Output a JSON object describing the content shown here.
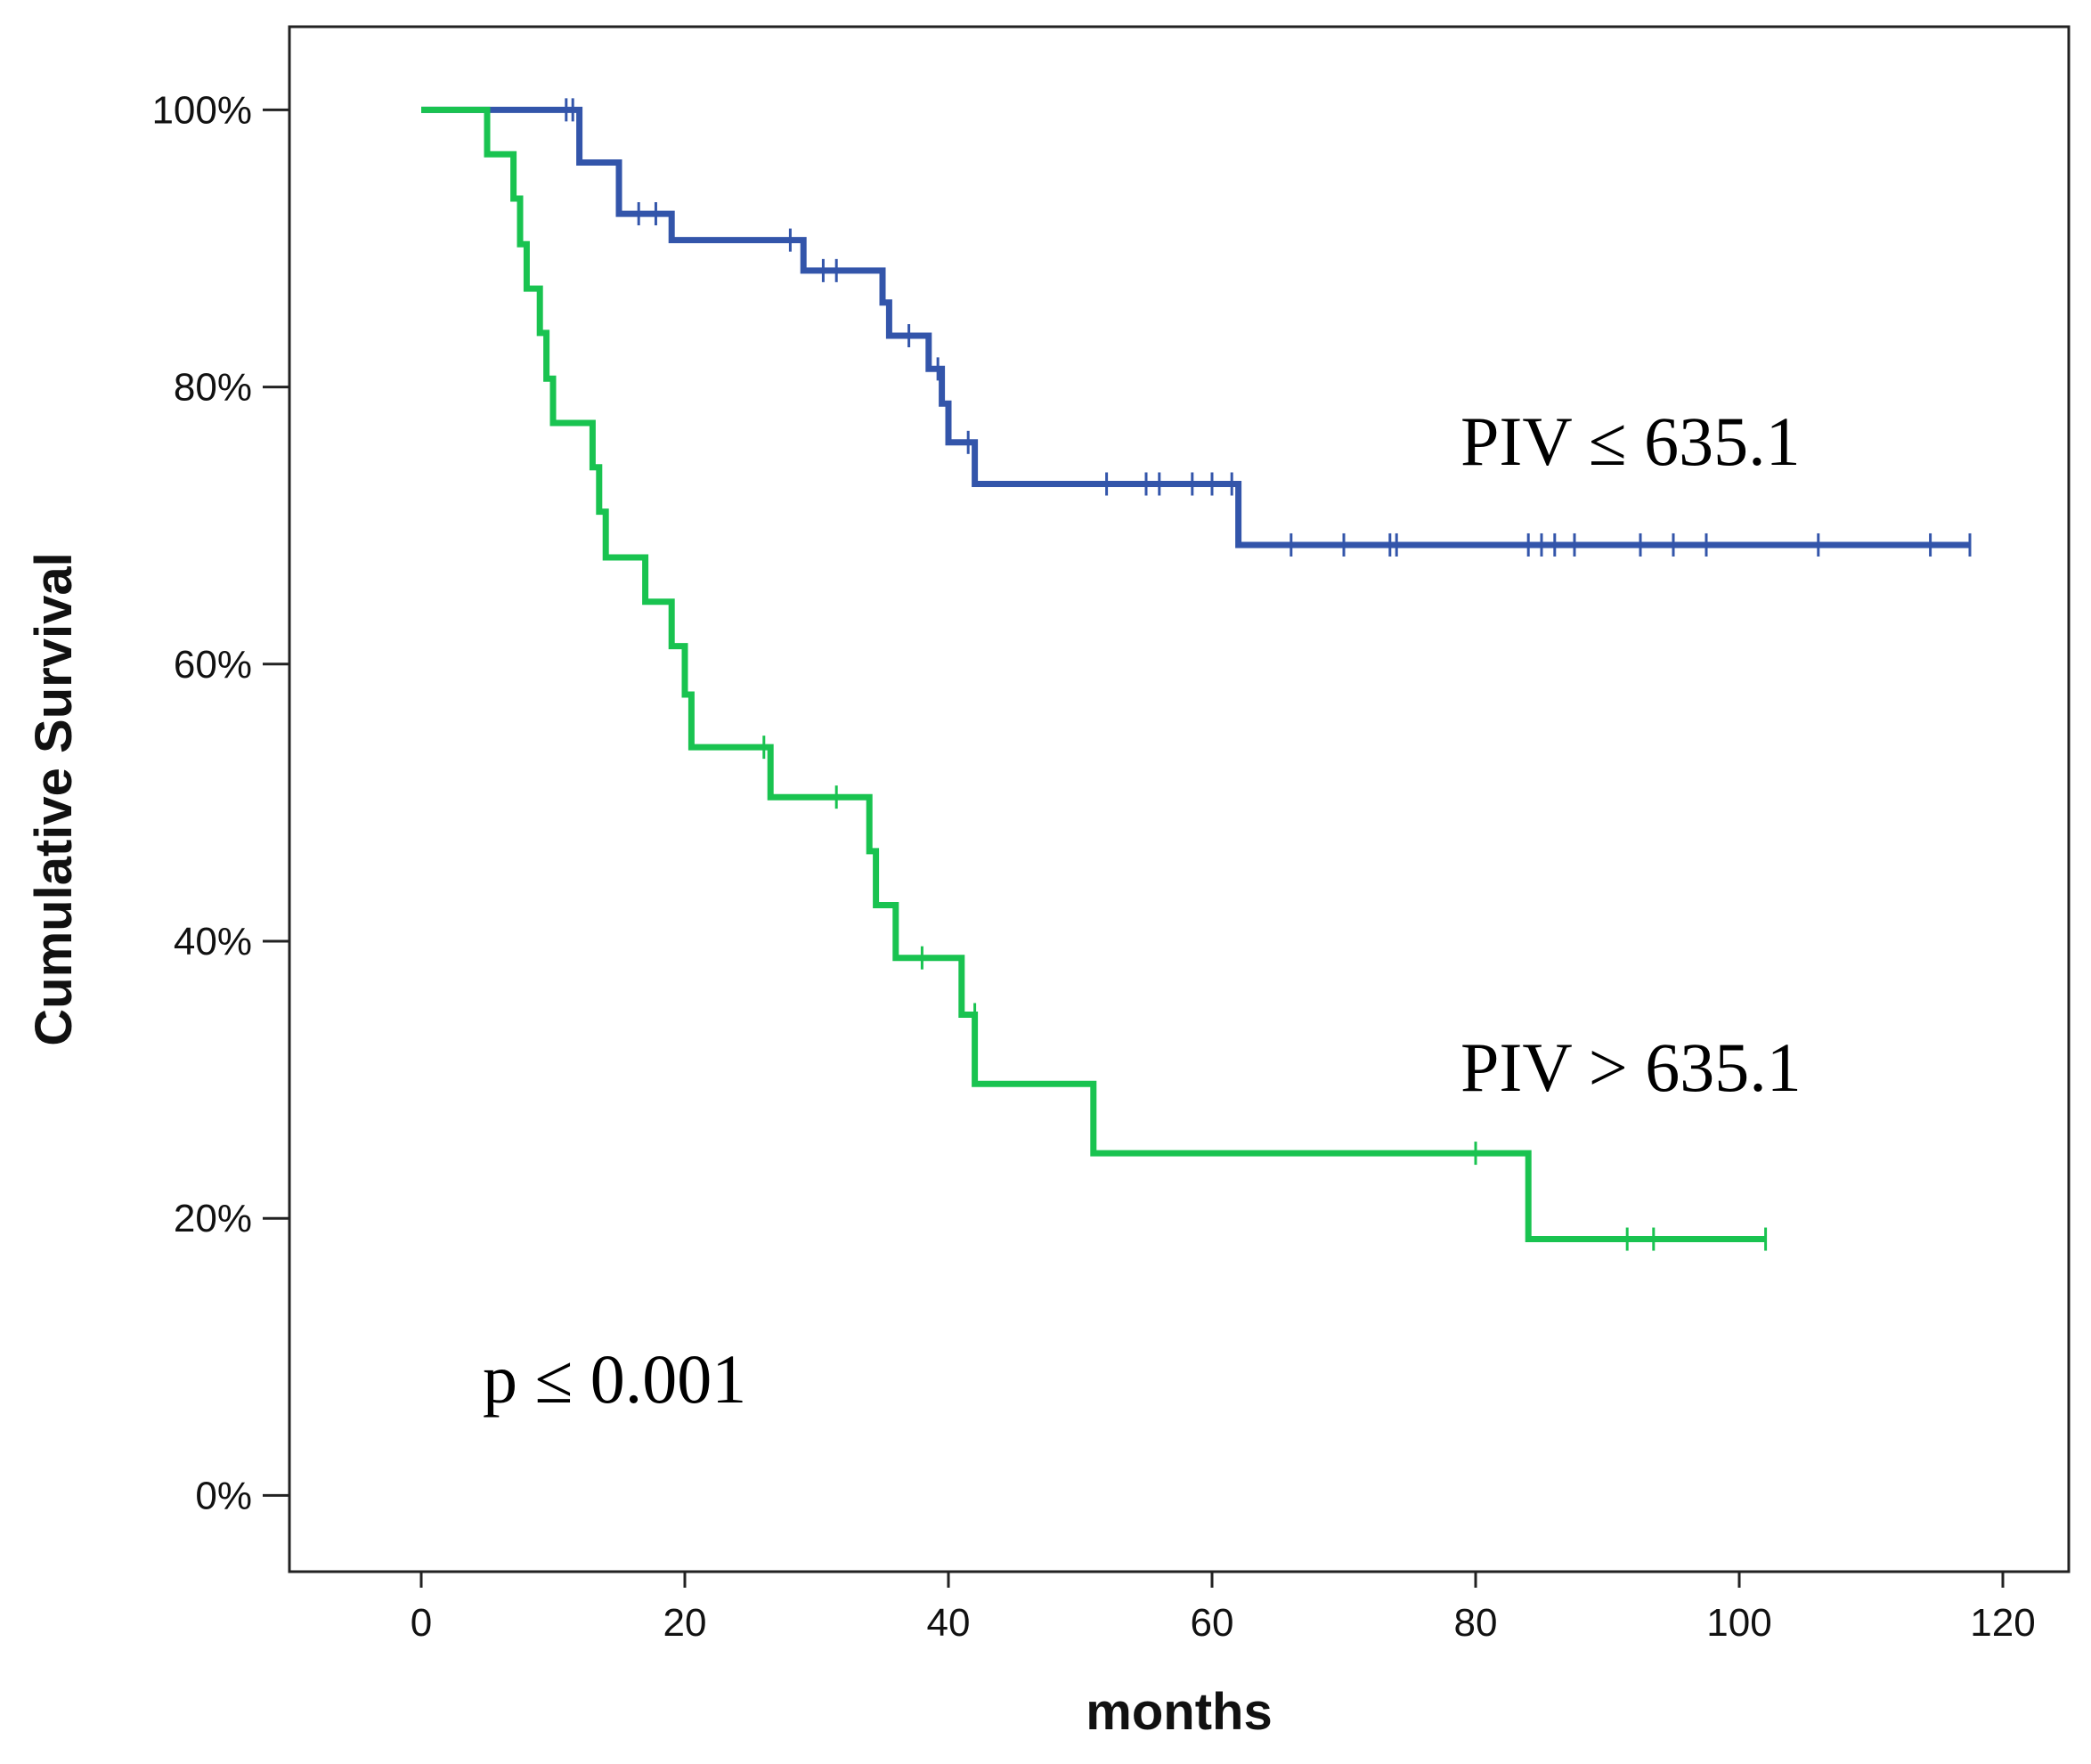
{
  "chart_data": {
    "type": "line",
    "subtype": "kaplan-meier step",
    "xlabel": "months",
    "ylabel": "Cumulative Survival",
    "xlim": [
      -10,
      125
    ],
    "ylim": [
      -5.5,
      106
    ],
    "x_ticks": [
      0,
      20,
      40,
      60,
      80,
      100,
      120
    ],
    "y_ticks": [
      0,
      20,
      40,
      60,
      80,
      100
    ],
    "x_tick_labels": [
      "0",
      "20",
      "40",
      "60",
      "80",
      "100",
      "120"
    ],
    "y_tick_labels": [
      "0%",
      "20%",
      "40%",
      "60%",
      "80%",
      "100%"
    ],
    "grid": false,
    "series": [
      {
        "name": "PIV ≤ 635.1",
        "color": "#3355aa",
        "steps": [
          [
            0,
            100
          ],
          [
            12,
            96.2
          ],
          [
            15,
            92.5
          ],
          [
            19,
            90.6
          ],
          [
            29,
            88.4
          ],
          [
            35,
            86.1
          ],
          [
            35.5,
            83.7
          ],
          [
            38.5,
            81.3
          ],
          [
            39.5,
            78.8
          ],
          [
            40,
            76.0
          ],
          [
            42,
            73.0
          ],
          [
            62,
            68.6
          ],
          [
            117.5,
            68.6
          ]
        ],
        "censored": [
          [
            11,
            100
          ],
          [
            11.5,
            100
          ],
          [
            16.5,
            92.5
          ],
          [
            17.8,
            92.5
          ],
          [
            28,
            90.6
          ],
          [
            30.5,
            88.4
          ],
          [
            31.5,
            88.4
          ],
          [
            37,
            83.7
          ],
          [
            39.2,
            81.3
          ],
          [
            41.5,
            76.0
          ],
          [
            52,
            73.0
          ],
          [
            55,
            73.0
          ],
          [
            56,
            73.0
          ],
          [
            58.5,
            73.0
          ],
          [
            60,
            73.0
          ],
          [
            61.5,
            73.0
          ],
          [
            66,
            68.6
          ],
          [
            70,
            68.6
          ],
          [
            73.5,
            68.6
          ],
          [
            74,
            68.6
          ],
          [
            84,
            68.6
          ],
          [
            85,
            68.6
          ],
          [
            86,
            68.6
          ],
          [
            87.5,
            68.6
          ],
          [
            92.5,
            68.6
          ],
          [
            95,
            68.6
          ],
          [
            97.5,
            68.6
          ],
          [
            106,
            68.6
          ],
          [
            114.5,
            68.6
          ],
          [
            117.5,
            68.6
          ]
        ]
      },
      {
        "name": "PIV > 635.1",
        "color": "#19c350",
        "steps": [
          [
            0,
            100
          ],
          [
            5,
            96.8
          ],
          [
            7,
            93.6
          ],
          [
            7.5,
            90.3
          ],
          [
            8,
            87.1
          ],
          [
            9,
            83.9
          ],
          [
            9.5,
            80.6
          ],
          [
            10,
            77.4
          ],
          [
            13,
            74.2
          ],
          [
            13.5,
            71.0
          ],
          [
            14,
            67.7
          ],
          [
            17,
            64.5
          ],
          [
            19,
            61.3
          ],
          [
            20,
            57.8
          ],
          [
            20.5,
            54.0
          ],
          [
            26.5,
            50.4
          ],
          [
            34,
            46.5
          ],
          [
            34.5,
            42.6
          ],
          [
            36,
            38.8
          ],
          [
            41,
            34.7
          ],
          [
            42,
            29.7
          ],
          [
            51,
            24.7
          ],
          [
            84,
            18.5
          ],
          [
            102,
            18.5
          ]
        ],
        "censored": [
          [
            26,
            54.0
          ],
          [
            31.5,
            50.4
          ],
          [
            38,
            38.8
          ],
          [
            42,
            34.7
          ],
          [
            80,
            24.7
          ],
          [
            91.5,
            18.5
          ],
          [
            93.5,
            18.5
          ],
          [
            102,
            18.5
          ]
        ]
      }
    ],
    "annotations": [
      "PIV ≤ 635.1",
      "PIV > 635.1",
      "p ≤ 0.001"
    ]
  }
}
